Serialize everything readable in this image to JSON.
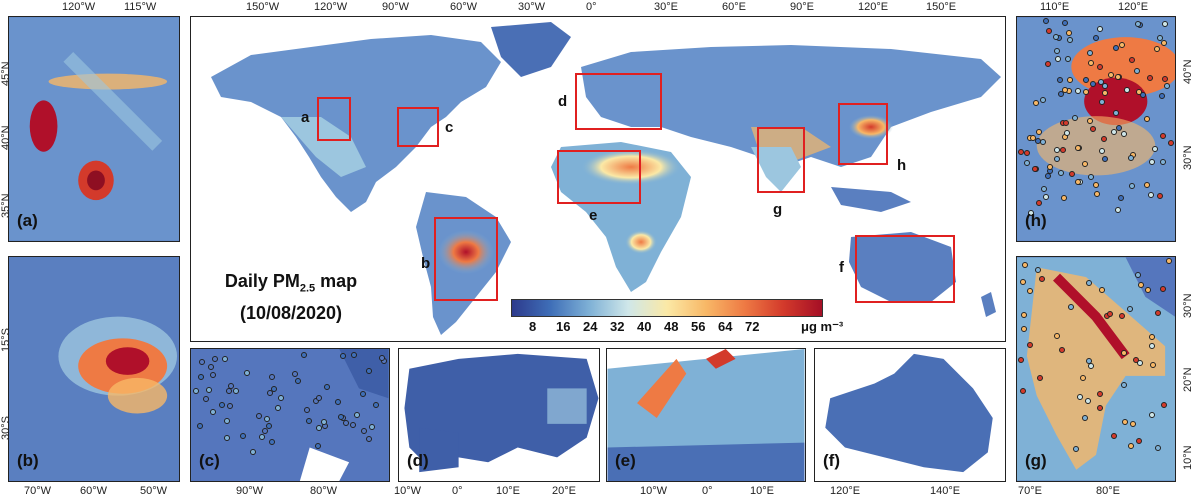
{
  "title": {
    "line1_main": "Daily PM",
    "line1_sub": "2.5",
    "line1_tail": " map",
    "line2": "(10/08/2020)"
  },
  "colorbar": {
    "ticks": [
      "8",
      "16",
      "24",
      "32",
      "40",
      "48",
      "56",
      "64",
      "72"
    ],
    "unit": "μg m⁻³",
    "colors": [
      "#2d3a8c",
      "#3f6fb8",
      "#7fb1d6",
      "#cfe7e9",
      "#fbe9a6",
      "#f8b867",
      "#ee7a44",
      "#d33a2b",
      "#a50f26"
    ]
  },
  "main_map": {
    "top_ticks": [
      "150°W",
      "120°W",
      "90°W",
      "60°W",
      "30°W",
      "0°",
      "30°E",
      "60°E",
      "90°E",
      "120°E",
      "150°E"
    ],
    "regions": [
      "a",
      "b",
      "c",
      "d",
      "e",
      "f",
      "g",
      "h"
    ]
  },
  "panels": {
    "a": {
      "label": "(a)",
      "top_ticks": [
        "120°W",
        "115°W"
      ],
      "left_ticks": [
        "45°N",
        "40°N",
        "35°N"
      ]
    },
    "b": {
      "label": "(b)",
      "bottom_ticks": [
        "70°W",
        "60°W",
        "50°W"
      ],
      "left_ticks": [
        "15°S",
        "30°S"
      ]
    },
    "c": {
      "label": "(c)",
      "bottom_ticks": [
        "90°W",
        "80°W"
      ]
    },
    "d": {
      "label": "(d)",
      "bottom_ticks": [
        "10°W",
        "0°",
        "10°E",
        "20°E"
      ]
    },
    "e": {
      "label": "(e)",
      "bottom_ticks": [
        "10°W",
        "0°",
        "10°E"
      ]
    },
    "f": {
      "label": "(f)",
      "bottom_ticks": [
        "120°E",
        "140°E"
      ]
    },
    "g": {
      "label": "(g)",
      "bottom_ticks": [
        "70°E",
        "80°E"
      ],
      "right_ticks": [
        "30°N",
        "20°N",
        "10°N"
      ]
    },
    "h": {
      "label": "(h)",
      "top_ticks": [
        "110°E",
        "120°E"
      ],
      "right_ticks": [
        "40°N",
        "30°N"
      ]
    }
  }
}
